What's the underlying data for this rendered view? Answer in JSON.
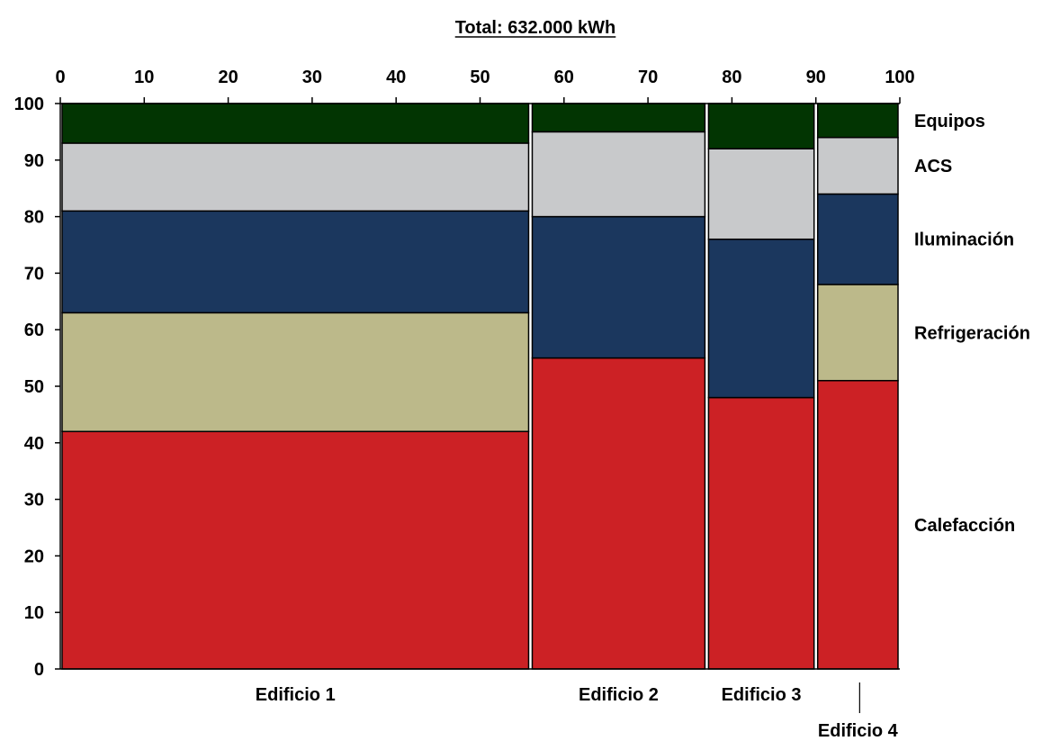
{
  "chart_data": {
    "type": "bar",
    "subtype": "marimekko",
    "title": "Total: 632.000 kWh",
    "xlim": [
      0,
      100
    ],
    "ylim": [
      0,
      100
    ],
    "x_ticks": [
      0,
      10,
      20,
      30,
      40,
      50,
      60,
      70,
      80,
      90,
      100
    ],
    "y_ticks": [
      0,
      10,
      20,
      30,
      40,
      50,
      60,
      70,
      80,
      90,
      100
    ],
    "grid": false,
    "legend_placement": "right",
    "columns": [
      {
        "name": "Edificio 1",
        "x_start": 0,
        "x_end": 56
      },
      {
        "name": "Edificio 2",
        "x_start": 56,
        "x_end": 77
      },
      {
        "name": "Edificio 3",
        "x_start": 77,
        "x_end": 90
      },
      {
        "name": "Edificio 4",
        "x_start": 90,
        "x_end": 100
      }
    ],
    "series": [
      {
        "name": "Calefacción",
        "color": "#cc2125",
        "values": [
          42,
          55,
          48,
          51
        ]
      },
      {
        "name": "Refrigeración",
        "color": "#bcb98a",
        "values": [
          21,
          0,
          0,
          17
        ]
      },
      {
        "name": "Iluminación",
        "color": "#1b375e",
        "values": [
          18,
          25,
          28,
          16
        ]
      },
      {
        "name": "ACS",
        "color": "#c8c9cb",
        "values": [
          12,
          15,
          16,
          10
        ]
      },
      {
        "name": "Equipos",
        "color": "#023502",
        "values": [
          7,
          5,
          8,
          6
        ]
      }
    ]
  }
}
